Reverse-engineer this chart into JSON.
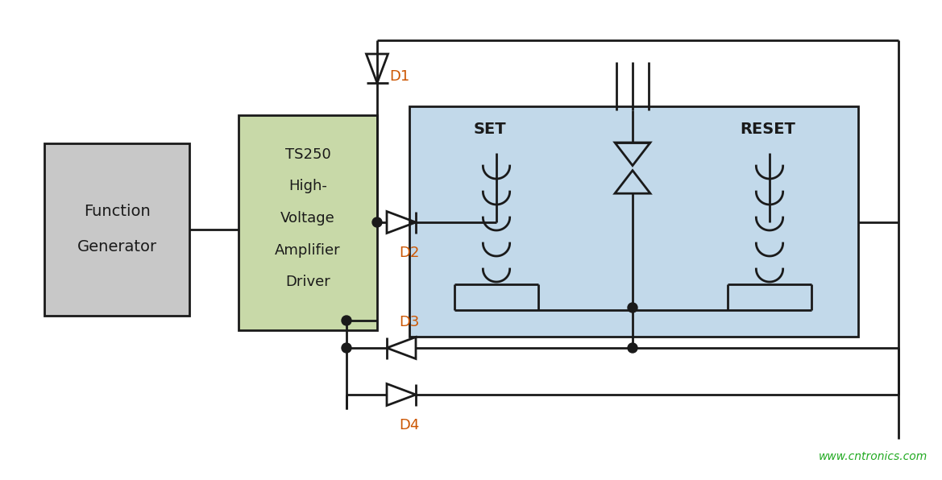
{
  "bg_color": "#ffffff",
  "line_color": "#1a1a1a",
  "relay_bg": "#c2d9ea",
  "relay_border": "#1a1a1a",
  "amp_bg": "#c8d9a8",
  "amp_border": "#1a1a1a",
  "gen_bg": "#c8c8c8",
  "gen_border": "#1a1a1a",
  "dot_color": "#1a1a1a",
  "text_color": "#1a1a1a",
  "label_color": "#cc5500",
  "watermark": "www.cntronics.com",
  "watermark_color": "#22aa22",
  "labels": {
    "fg1": "Function",
    "fg2": "Generator",
    "amp1": "TS250",
    "amp2": "High-",
    "amp3": "Voltage",
    "amp4": "Amplifier",
    "amp5": "Driver",
    "set": "SET",
    "reset": "RESET",
    "d1": "D1",
    "d2": "D2",
    "d3": "D3",
    "d4": "D4"
  },
  "figsize": [
    11.69,
    5.96
  ],
  "dpi": 100
}
